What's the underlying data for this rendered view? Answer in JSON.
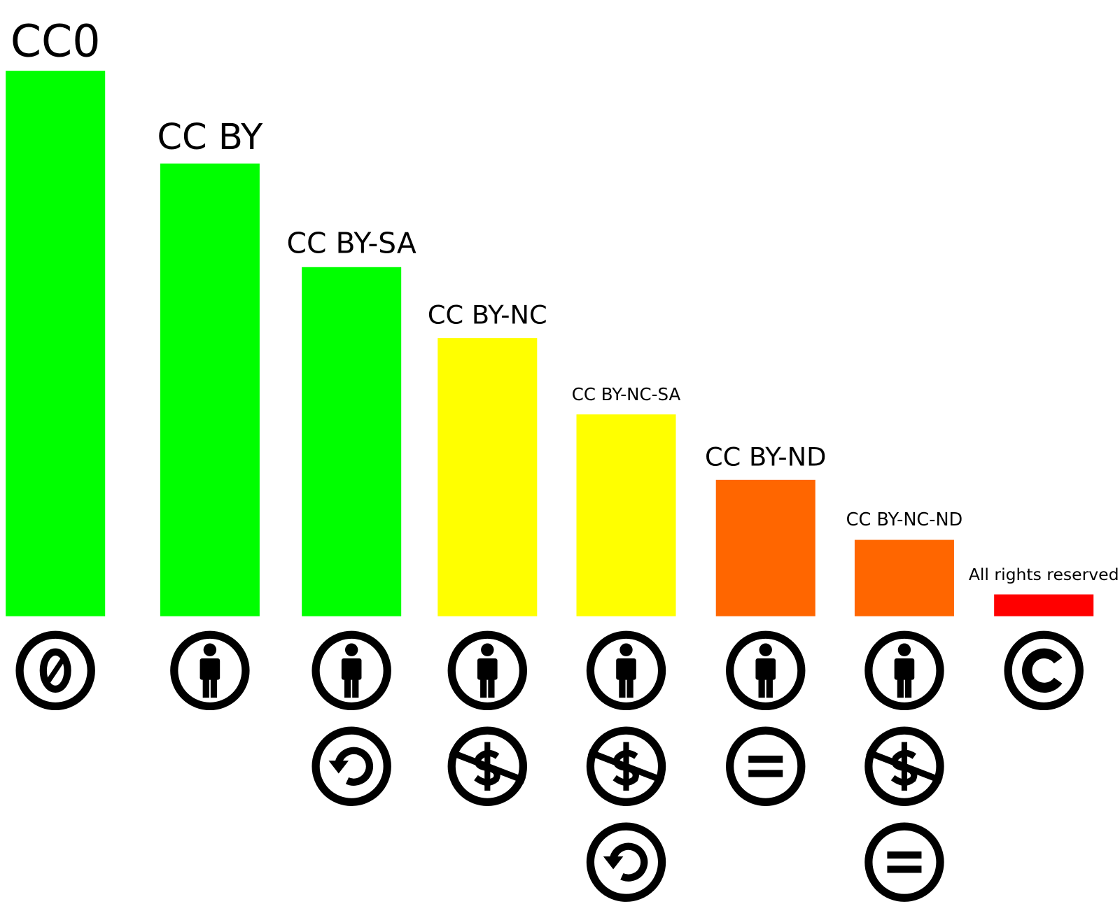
{
  "chart_data": {
    "type": "bar",
    "categories": [
      "CC0",
      "CC BY",
      "CC BY-SA",
      "CC BY-NC",
      "CC BY-NC-SA",
      "CC BY-ND",
      "CC BY-NC-ND",
      "All rights reserved"
    ],
    "values": [
      100,
      83,
      64,
      51,
      37,
      25,
      14,
      4
    ],
    "colors": [
      "#00ff00",
      "#00ff00",
      "#00ff00",
      "#ffff00",
      "#ffff00",
      "#ff6600",
      "#ff6600",
      "#ff0000"
    ],
    "icons": [
      [
        "zero"
      ],
      [
        "by"
      ],
      [
        "by",
        "sa"
      ],
      [
        "by",
        "nc"
      ],
      [
        "by",
        "nc",
        "sa"
      ],
      [
        "by",
        "nd"
      ],
      [
        "by",
        "nc",
        "nd"
      ],
      [
        "copyright"
      ]
    ]
  }
}
